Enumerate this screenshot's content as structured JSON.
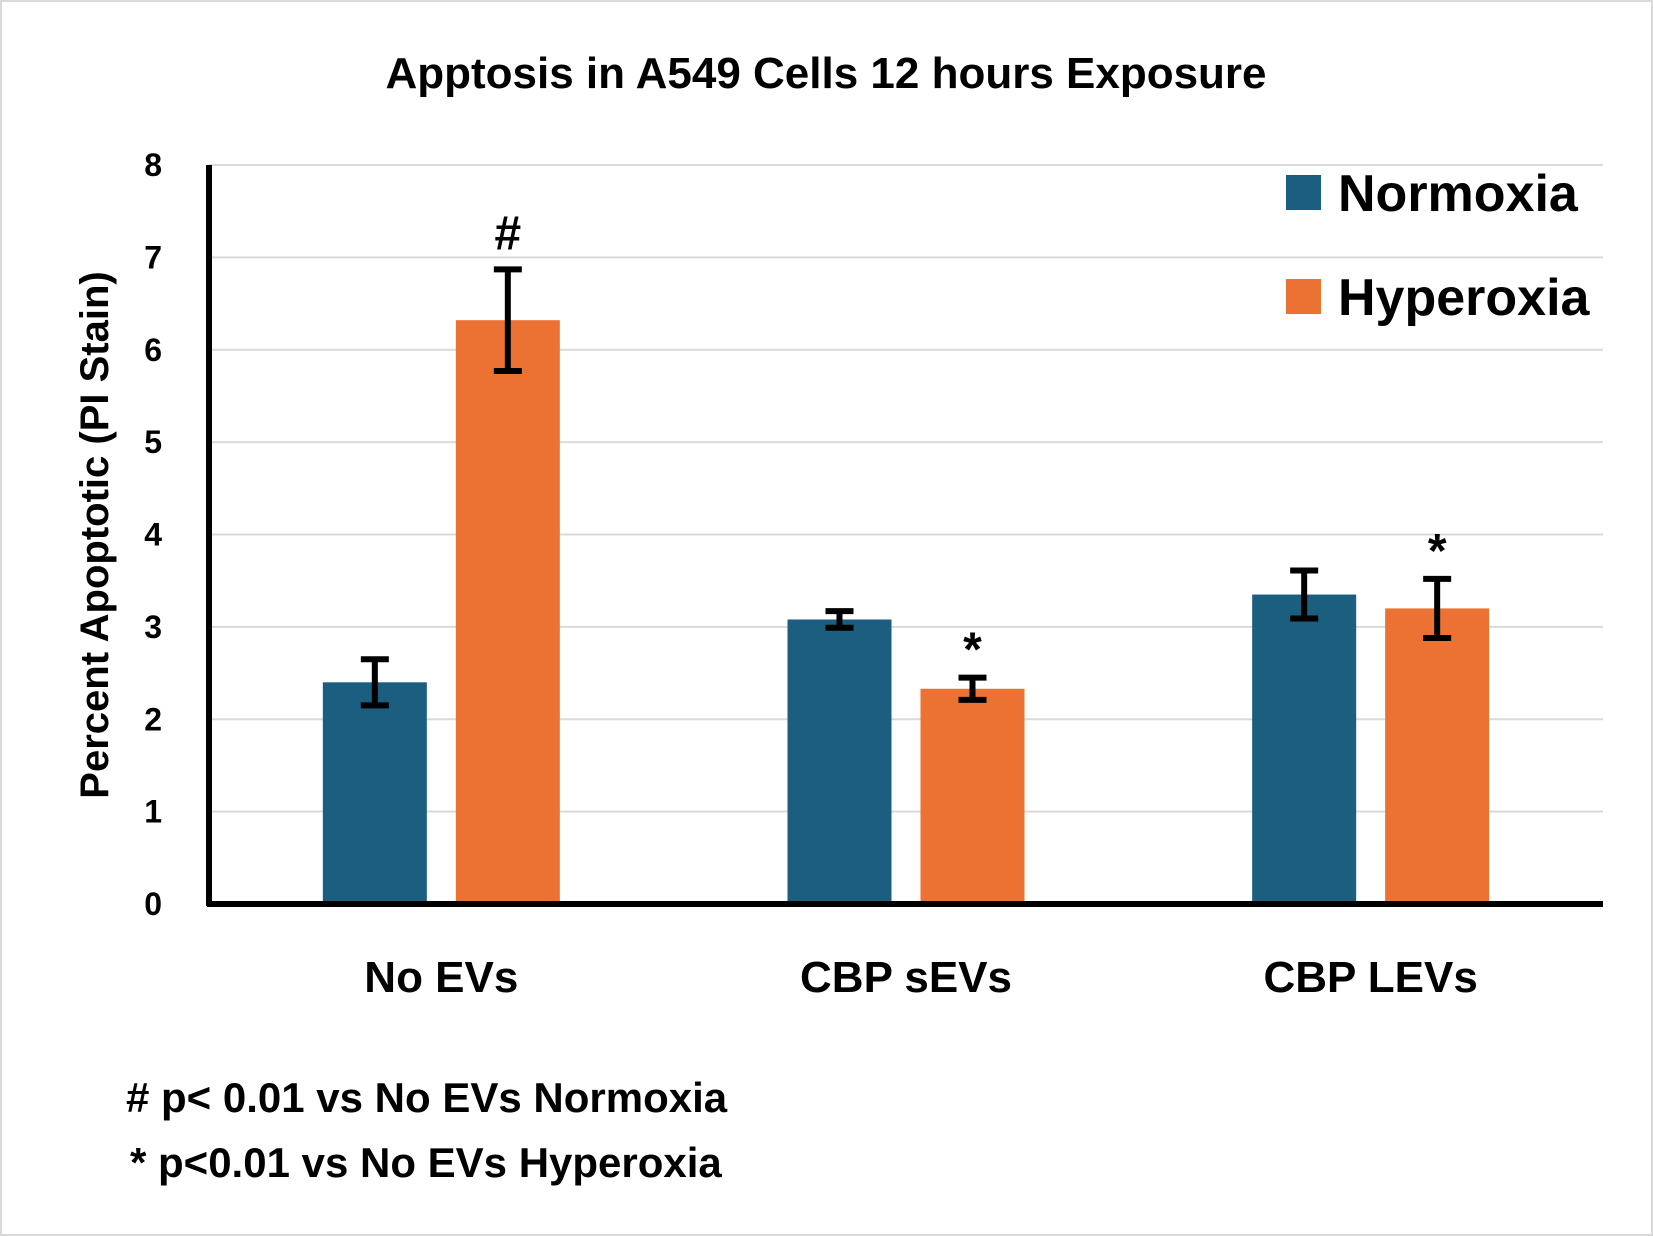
{
  "chart_data": {
    "type": "bar",
    "title": "Apptosis in A549 Cells 12 hours Exposure",
    "xlabel": "",
    "ylabel": "Percent Apoptotic (PI Stain)",
    "ylim": [
      0,
      8
    ],
    "yticks": [
      0,
      1,
      2,
      3,
      4,
      5,
      6,
      7,
      8
    ],
    "grid": true,
    "legend_position": "top-right",
    "categories": [
      "No EVs",
      "CBP sEVs",
      "CBP LEVs"
    ],
    "series": [
      {
        "name": "Normoxia",
        "color": "#1b5e80",
        "values": [
          2.4,
          3.08,
          3.35
        ],
        "errors": [
          0.25,
          0.09,
          0.26
        ],
        "markers": [
          "",
          "",
          ""
        ]
      },
      {
        "name": "Hyperoxia",
        "color": "#ec7233",
        "values": [
          6.32,
          2.33,
          3.2
        ],
        "errors": [
          0.55,
          0.12,
          0.32
        ],
        "markers": [
          "#",
          "*",
          "*"
        ]
      }
    ],
    "footnotes": [
      "# p< 0.01 vs No EVs Normoxia",
      "* p<0.01 vs No EVs Hyperoxia"
    ]
  }
}
